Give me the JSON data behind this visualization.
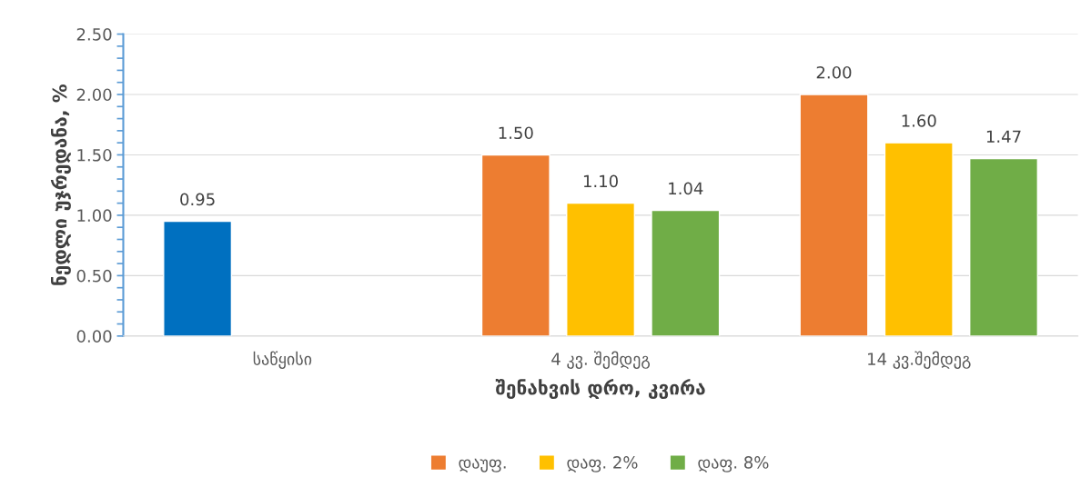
{
  "chart_data": {
    "type": "bar",
    "xlabel": "შენახვის დრო, კვირა",
    "ylabel": "ნედლი უჯრედანა, %",
    "categories": [
      "საწყისი",
      "4 კვ. შემდეგ",
      "14 კვ.შემდეგ"
    ],
    "series": [
      {
        "name": "დაუფ.",
        "color": "#ed7d31",
        "colors": [
          "#0070c0",
          "#ed7d31",
          "#ed7d31"
        ],
        "values": [
          0.95,
          1.5,
          2.0
        ],
        "value_labels": [
          "0.95",
          "1.50",
          "2.00"
        ]
      },
      {
        "name": "დაფ. 2%",
        "color": "#ffc000",
        "values": [
          null,
          1.1,
          1.6
        ],
        "value_labels": [
          null,
          "1.10",
          "1.60"
        ]
      },
      {
        "name": "დაფ. 8%",
        "color": "#70ad47",
        "values": [
          null,
          1.04,
          1.47
        ],
        "value_labels": [
          null,
          "1.04",
          "1.47"
        ]
      }
    ],
    "ylim": [
      0,
      2.5
    ],
    "yticks": [
      {
        "value": 0,
        "label": "0.00"
      },
      {
        "value": 0.1,
        "label": null
      },
      {
        "value": 0.2,
        "label": null
      },
      {
        "value": 0.3,
        "label": null
      },
      {
        "value": 0.4,
        "label": null
      },
      {
        "value": 0.5,
        "label": "0.50"
      },
      {
        "value": 0.6,
        "label": null
      },
      {
        "value": 0.7,
        "label": null
      },
      {
        "value": 0.8,
        "label": null
      },
      {
        "value": 0.9,
        "label": null
      },
      {
        "value": 1.0,
        "label": "1.00"
      },
      {
        "value": 1.1,
        "label": null
      },
      {
        "value": 1.2,
        "label": null
      },
      {
        "value": 1.3,
        "label": null
      },
      {
        "value": 1.4,
        "label": null
      },
      {
        "value": 1.5,
        "label": "1.50"
      },
      {
        "value": 1.6,
        "label": null
      },
      {
        "value": 1.7,
        "label": null
      },
      {
        "value": 1.8,
        "label": null
      },
      {
        "value": 1.9,
        "label": null
      },
      {
        "value": 2.0,
        "label": "2.00"
      },
      {
        "value": 2.1,
        "label": null
      },
      {
        "value": 2.2,
        "label": null
      },
      {
        "value": 2.3,
        "label": null
      },
      {
        "value": 2.4,
        "label": null
      },
      {
        "value": 2.5,
        "label": "2.50"
      }
    ],
    "grid": "y",
    "legend": "bottom"
  }
}
